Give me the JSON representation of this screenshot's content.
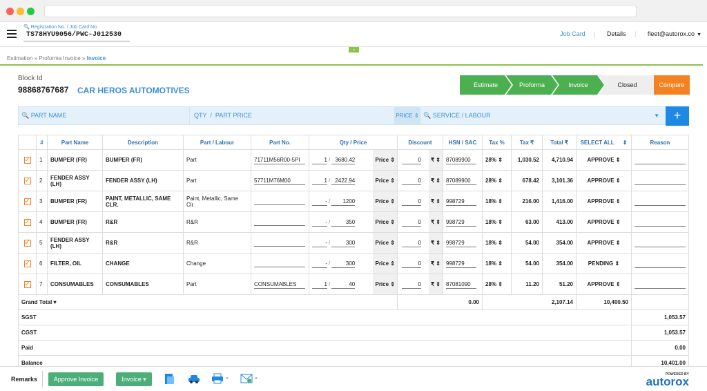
{
  "header": {
    "reg_label": "Registration No. / Job Card No.",
    "reg_value": "TS78HYU9056/PWC-J012530",
    "nav": [
      "Job Card",
      "Details",
      "fleet@autorox.co"
    ]
  },
  "breadcrumb": [
    "Estimation",
    "Proforma Invoice",
    "Invoice"
  ],
  "block": {
    "label": "Block Id",
    "id": "98868767687",
    "garage": "CAR HEROS AUTOMOTIVES"
  },
  "steps": [
    "Estimate",
    "Proforma",
    "Invoice",
    "Closed"
  ],
  "compare": "Compare",
  "search": {
    "part_name": "PART NAME",
    "qty": "QTY",
    "part_price": "PART PRICE",
    "price_sel": "PRICE",
    "service": "SERVICE / LABOUR",
    "plus": "+"
  },
  "columns": [
    "#",
    "Part Name",
    "Description",
    "Part / Labour",
    "Part No.",
    "Qty / Price",
    "Discount",
    "HSN / SAC",
    "Tax %",
    "Tax ₹",
    "Total ₹",
    "SELECT ALL",
    "Reason"
  ],
  "rows": [
    {
      "n": "1",
      "name": "BUMPER (FR)",
      "desc": "BUMPER (FR)",
      "type": "Part",
      "partno": "71711M56R00-5PI",
      "qty": "1",
      "price": "3680.42",
      "disc": "0",
      "hsn": "87089900",
      "tax": "28%",
      "taxamt": "1,030.52",
      "total": "4,710.94",
      "status": "APPROVE"
    },
    {
      "n": "2",
      "name": "FENDER ASSY (LH)",
      "desc": "FENDER ASSY (LH)",
      "type": "Part",
      "partno": "57711M76M00",
      "qty": "1",
      "price": "2422.94",
      "disc": "0",
      "hsn": "87089900",
      "tax": "28%",
      "taxamt": "678.42",
      "total": "3,101.36",
      "status": "APPROVE"
    },
    {
      "n": "3",
      "name": "BUMPER (FR)",
      "desc": "PAINT, METALLIC, SAME CLR.",
      "type": "Paint, Metallic, Same Clr.",
      "partno": "",
      "qty": "-",
      "price": "1200",
      "disc": "0",
      "hsn": "998729",
      "tax": "18%",
      "taxamt": "216.00",
      "total": "1,416.00",
      "status": "APPROVE"
    },
    {
      "n": "4",
      "name": "BUMPER (FR)",
      "desc": "R&R",
      "type": "R&R",
      "partno": "",
      "qty": "-",
      "price": "350",
      "disc": "0",
      "hsn": "998729",
      "tax": "18%",
      "taxamt": "63.00",
      "total": "413.00",
      "status": "APPROVE"
    },
    {
      "n": "5",
      "name": "FENDER ASSY (LH)",
      "desc": "R&R",
      "type": "R&R",
      "partno": "",
      "qty": "-",
      "price": "300",
      "disc": "0",
      "hsn": "998729",
      "tax": "18%",
      "taxamt": "54.00",
      "total": "354.00",
      "status": "APPROVE"
    },
    {
      "n": "6",
      "name": "FILTER, OIL",
      "desc": "CHANGE",
      "type": "Change",
      "partno": "",
      "qty": "-",
      "price": "300",
      "disc": "0",
      "hsn": "998729",
      "tax": "18%",
      "taxamt": "54.00",
      "total": "354.00",
      "status": "PENDING"
    },
    {
      "n": "7",
      "name": "CONSUMABLES",
      "desc": "CONSUMABLES",
      "type": "Part",
      "partno": "CONSUMABLES",
      "qty": "1",
      "price": "40",
      "disc": "0",
      "hsn": "87081090",
      "tax": "28%",
      "taxamt": "11.20",
      "total": "51.20",
      "status": "APPROVE"
    }
  ],
  "price_label": "Price",
  "rupee": "₹",
  "grand": {
    "label": "Grand Total",
    "disc": "0.00",
    "tax": "2,107.14",
    "total": "10,400.50"
  },
  "summary": [
    {
      "label": "SGST",
      "value": "1,053.57"
    },
    {
      "label": "CGST",
      "value": "1,053.57"
    },
    {
      "label": "Paid",
      "value": "0.00"
    },
    {
      "label": "Balance",
      "value": "10,401.00"
    }
  ],
  "footer": {
    "remarks": "Remarks",
    "approve": "Approve Invoice",
    "invoice": "Invoice",
    "powered": "POWERED BY",
    "brand": "autorox"
  },
  "colors": {
    "accent": "#3a8fd8",
    "green": "#4caf7a",
    "step_green": "#4caf50",
    "orange": "#f58220"
  }
}
